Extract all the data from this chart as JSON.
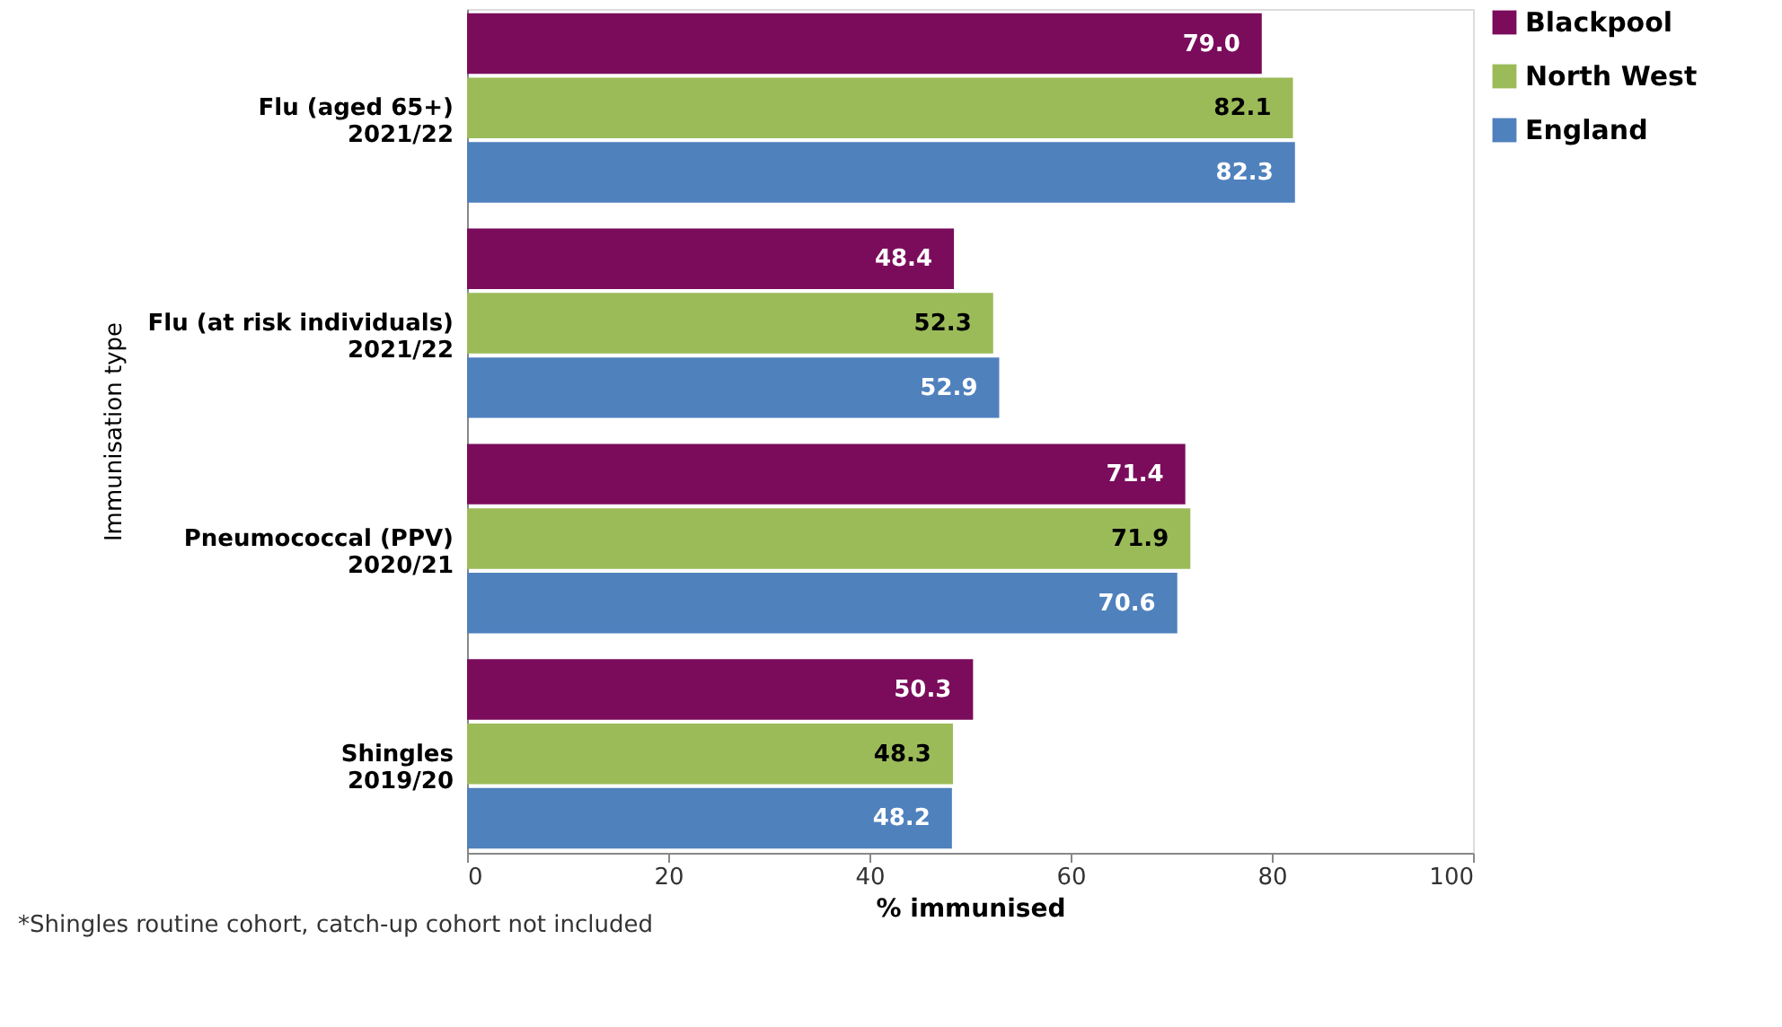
{
  "chart_data": {
    "type": "bar",
    "orientation": "horizontal",
    "xlabel": "% immunised",
    "ylabel": "Immunisation type",
    "categories": [
      "Flu (aged 65+)\n2021/22",
      "Flu (at risk individuals)\n2021/22",
      "Pneumococcal (PPV)\n2020/21",
      "Shingles\n2019/20"
    ],
    "series": [
      {
        "name": "Blackpool",
        "color": "#7b0c5c",
        "values": [
          79.0,
          48.4,
          71.4,
          50.3
        ],
        "value_labels": [
          "79.0",
          "48.4",
          "71.4",
          "50.3"
        ]
      },
      {
        "name": "North West",
        "color": "#9bbb59",
        "values": [
          82.1,
          52.3,
          71.9,
          48.3
        ],
        "value_labels": [
          "82.1",
          "52.3",
          "71.9",
          "48.3"
        ]
      },
      {
        "name": "England",
        "color": "#4f81bd",
        "values": [
          82.3,
          52.9,
          70.6,
          48.2
        ],
        "value_labels": [
          "82.3",
          "52.9",
          "70.6",
          "48.2"
        ]
      }
    ],
    "xlim": [
      0,
      100
    ],
    "xticks": [
      0,
      20,
      40,
      60,
      80,
      100
    ],
    "grid": false,
    "legend": "right",
    "annotations": [
      "*Shingles routine cohort, catch-up cohort not included"
    ]
  }
}
